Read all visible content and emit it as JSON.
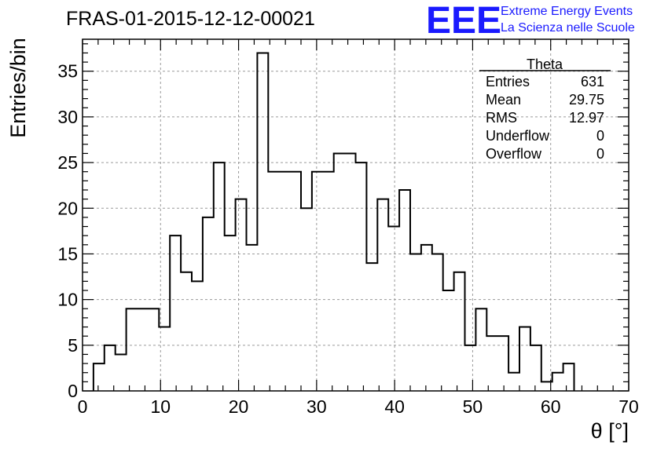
{
  "chart_data": {
    "type": "bar",
    "title": "FRAS-01-2015-12-12-00021",
    "xlabel": "θ [°]",
    "ylabel": "Entries/bin",
    "xlim": [
      0,
      70
    ],
    "ylim": [
      0,
      38.5
    ],
    "grid": true,
    "x_ticks": [
      "0",
      "10",
      "20",
      "30",
      "40",
      "50",
      "60",
      "70"
    ],
    "y_ticks": [
      "0",
      "5",
      "10",
      "15",
      "20",
      "25",
      "30",
      "35"
    ],
    "bin_width": 1.4,
    "bin_start": 1.4,
    "values": [
      3,
      5,
      4,
      9,
      9,
      9,
      7,
      17,
      13,
      12,
      19,
      25,
      17,
      21,
      16,
      37,
      24,
      24,
      24,
      20,
      24,
      24,
      26,
      26,
      25,
      14,
      21,
      18,
      22,
      15,
      16,
      15,
      11,
      13,
      5,
      9,
      6,
      6,
      2,
      7,
      5,
      1,
      2,
      3
    ]
  },
  "stats": {
    "name": "Theta",
    "rows": [
      {
        "label": "Entries",
        "value": "631"
      },
      {
        "label": "Mean",
        "value": "29.75"
      },
      {
        "label": "RMS",
        "value": "12.97"
      },
      {
        "label": "Underflow",
        "value": "0"
      },
      {
        "label": "Overflow",
        "value": "0"
      }
    ]
  },
  "brand": {
    "logo": "EEE",
    "line1": "Extreme Energy Events",
    "line2": "La Scienza nelle Scuole",
    "color": "#1a1aff"
  }
}
